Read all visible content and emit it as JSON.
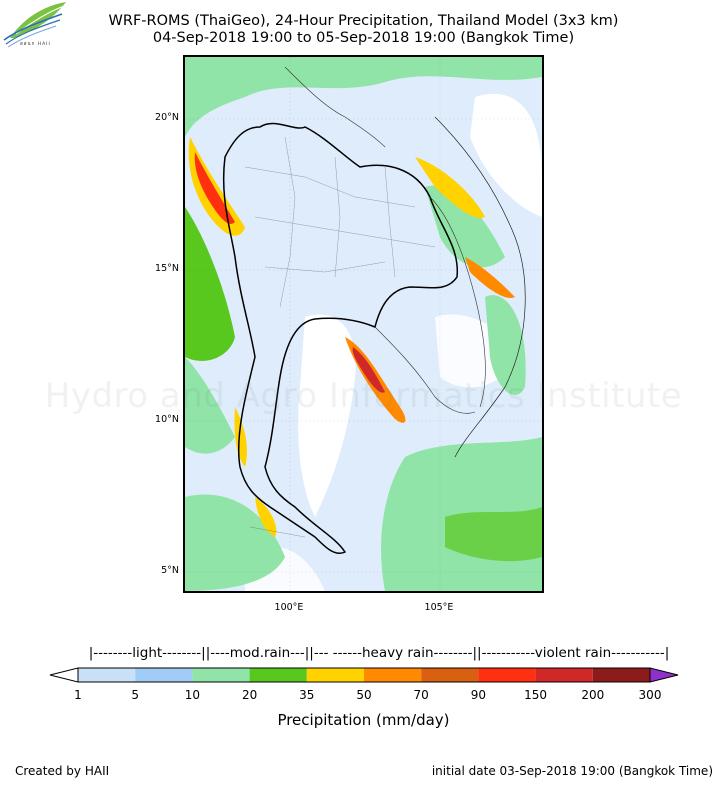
{
  "title_line1": "WRF-ROMS (ThaiGeo), 24-Hour Precipitation, Thailand Model (3x3 km)",
  "title_line2": "04-Sep-2018 19:00 to 05-Sep-2018 19:00 (Bangkok Time)",
  "logo_icon": "haii-leaf-logo-icon",
  "logo_text": "สสนก HAII",
  "watermark": "Hydro and Agro Informatics Institute",
  "lat_labels": [
    "20°N",
    "15°N",
    "10°N",
    "5°N"
  ],
  "lon_labels": [
    "100°E",
    "105°E"
  ],
  "intensity_scale": "|--------light--------||----mod.rain---||--- ------heavy rain--------||-----------violent rain-----------|",
  "colorbar": {
    "ticks": [
      "1",
      "5",
      "10",
      "20",
      "35",
      "50",
      "70",
      "90",
      "150",
      "200",
      "300"
    ],
    "colors": [
      "#c8e0f8",
      "#a0ccf5",
      "#90e4a8",
      "#58c81e",
      "#ffd200",
      "#ff8a00",
      "#d86010",
      "#ff3010",
      "#d02828",
      "#8c1c1c"
    ],
    "under_color": "#ffffff",
    "over_color": "#9030c8",
    "label": "Precipitation (mm/day)"
  },
  "footer_left": "Created by HAII",
  "footer_right": "initial date 03-Sep-2018 19:00 (Bangkok Time)"
}
